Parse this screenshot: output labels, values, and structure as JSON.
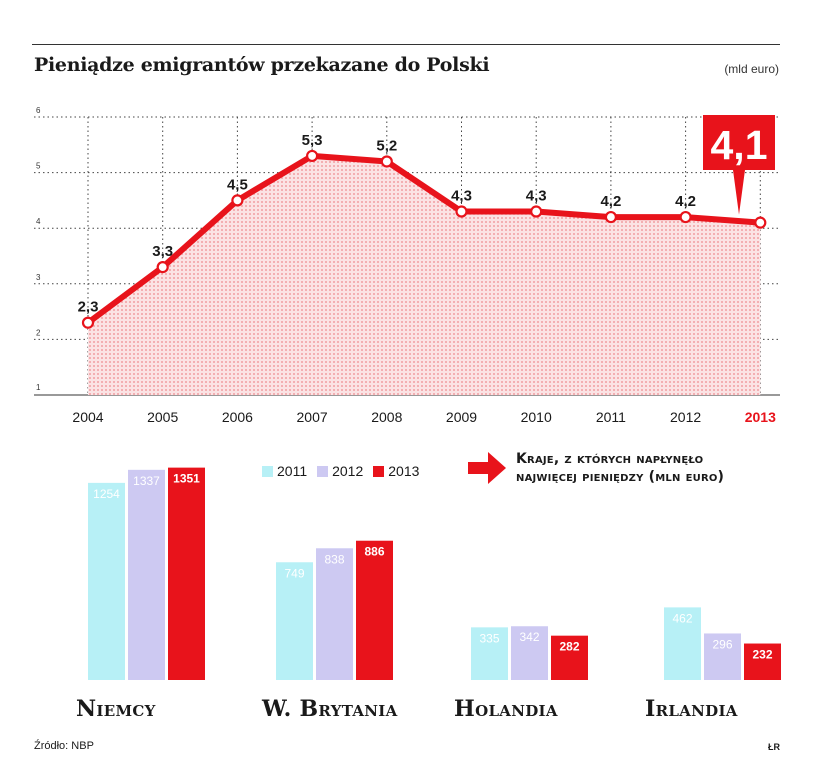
{
  "title": "Pieniądze emigrantów przekazane do Polski",
  "unit": "(mld euro)",
  "highlight_value": "4,1",
  "colors": {
    "red": "#e8131b",
    "cyan": "#b7f0f6",
    "lavender": "#cdc9f2",
    "dark": "#1a1a1a"
  },
  "chart_data": [
    {
      "type": "area",
      "title": "Pieniądze emigrantów przekazane do Polski",
      "ylabel": "(mld euro)",
      "ylim": [
        1,
        6
      ],
      "yticks": [
        1,
        2,
        3,
        4,
        5,
        6
      ],
      "grid": true,
      "x": [
        "2004",
        "2005",
        "2006",
        "2007",
        "2008",
        "2009",
        "2010",
        "2011",
        "2012",
        "2013"
      ],
      "values": [
        2.3,
        3.3,
        4.5,
        5.3,
        5.2,
        4.3,
        4.3,
        4.2,
        4.2,
        4.1
      ],
      "labels": [
        "2,3",
        "3,3",
        "4,5",
        "5,3",
        "5,2",
        "4,3",
        "4,3",
        "4,2",
        "4,2",
        "4,1"
      ]
    },
    {
      "type": "bar",
      "title": "Kraje, z których napłynęło najwięcej pieniędzy (mln euro)",
      "categories": [
        "Niemcy",
        "W. Brytania",
        "Holandia",
        "Irlandia"
      ],
      "series": [
        {
          "name": "2011",
          "values": [
            1254,
            749,
            335,
            462
          ]
        },
        {
          "name": "2012",
          "values": [
            1337,
            838,
            342,
            296
          ]
        },
        {
          "name": "2013",
          "values": [
            1351,
            886,
            282,
            232
          ]
        }
      ]
    }
  ],
  "bars_heading_line1": "Kraje, z których napłynęło",
  "bars_heading_line2": "najwięcej pieniędzy (mln euro)",
  "legend": [
    "2011",
    "2012",
    "2013"
  ],
  "countries": [
    "Niemcy",
    "W. Brytania",
    "Holandia",
    "Irlandia"
  ],
  "source": "Źródło: NBP",
  "credit": "ŁR"
}
